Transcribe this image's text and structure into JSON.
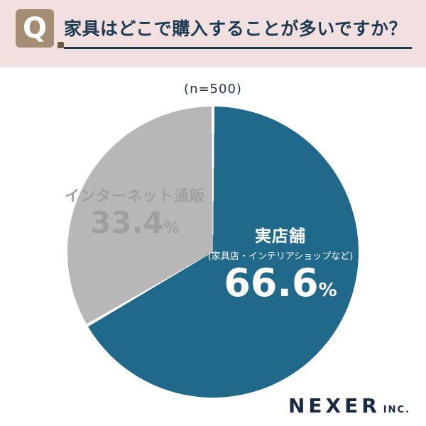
{
  "header": {
    "q_mark": "Q",
    "title": "家具はどこで購入することが多いですか？"
  },
  "chart_data": {
    "type": "pie",
    "title": "家具はどこで購入することが多いですか？",
    "sample_label": "(n=500)",
    "direction": "clockwise",
    "start_angle_deg": 0,
    "legend_position": "none",
    "slices": [
      {
        "label": "実店舗",
        "sublabel": "(家具店・インテリアショップなど)",
        "value": 66.6,
        "display_value": "66.6",
        "unit": "%",
        "color": "#20698a",
        "text_color": "#ffffff"
      },
      {
        "label": "インターネット通販",
        "sublabel": "",
        "value": 33.4,
        "display_value": "33.4",
        "unit": "%",
        "color": "#b7b7b7",
        "text_color": "#9f9f9f"
      }
    ]
  },
  "footer": {
    "brand": "NEXER",
    "brand_suffix": "INC."
  },
  "colors": {
    "background_pink": "#f2e0e0",
    "q_box_tan": "#a58d73",
    "title_navy": "#1c3a52",
    "teal": "#20698a",
    "gray": "#b7b7b7",
    "brand_navy": "#1b2a44"
  }
}
